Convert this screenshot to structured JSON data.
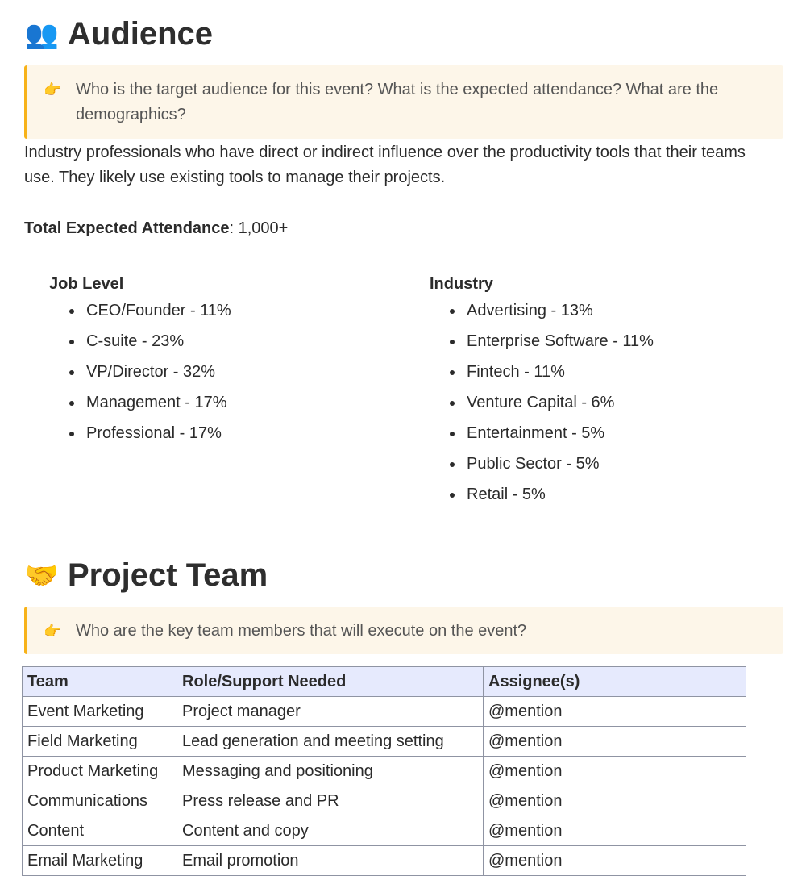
{
  "audience": {
    "icon": "busts-in-silhouette-emoji",
    "emoji": "👥",
    "title": "Audience",
    "callout_icon": "👉",
    "callout": "Who is the target audience for this event? What is the expected attendance? What are the demographics?",
    "description": "Industry professionals who have direct or indirect influence over the productivity tools that their teams use. They likely use existing tools to manage their projects.",
    "attendance_label": "Total Expected Attendance",
    "attendance_value": ": 1,000+",
    "job_level": {
      "title": "Job Level",
      "items": [
        "CEO/Founder - 11%",
        "C-suite - 23%",
        "VP/Director - 32%",
        "Management - 17%",
        "Professional - 17%"
      ]
    },
    "industry": {
      "title": "Industry",
      "items": [
        "Advertising - 13%",
        "Enterprise Software - 11%",
        "Fintech - 11%",
        "Venture Capital - 6%",
        "Entertainment - 5%",
        "Public Sector - 5%",
        "Retail - 5%"
      ]
    }
  },
  "team": {
    "icon": "handshake-emoji",
    "emoji": "🤝",
    "title": "Project Team",
    "callout_icon": "👉",
    "callout": "Who are the key team members that will execute on the event?",
    "headers": [
      "Team",
      "Role/Support Needed",
      "Assignee(s)"
    ],
    "rows": [
      [
        "Event Marketing",
        "Project manager",
        "@mention"
      ],
      [
        "Field Marketing",
        "Lead generation and meeting setting",
        "@mention"
      ],
      [
        "Product Marketing",
        "Messaging and positioning",
        "@mention"
      ],
      [
        "Communications",
        "Press release and PR",
        "@mention"
      ],
      [
        "Content",
        "Content and copy",
        "@mention"
      ],
      [
        "Email Marketing",
        "Email promotion",
        "@mention"
      ]
    ]
  },
  "colors": {
    "callout_bg": "#fdf6e9",
    "callout_border": "#f7b219",
    "table_header_bg": "#e6eafd"
  }
}
